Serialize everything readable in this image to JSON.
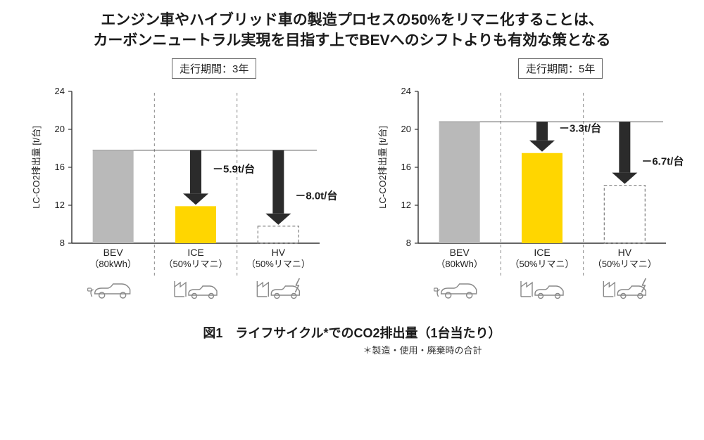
{
  "title_line1": "エンジン車やハイブリッド車の製造プロセスの50%をリマニ化することは、",
  "title_line2": "カーボンニュートラル実現を目指す上でBEVへのシフトよりも有効な策となる",
  "caption": "図1　ライフサイクル*でのCO2排出量（1台当たり）",
  "footnote": "＊製造・使用・廃棄時の合計",
  "y_axis_label": "LC-CO2排出量 [t/台]",
  "chart": {
    "type": "bar",
    "ylim": [
      8,
      24
    ],
    "yticks": [
      8,
      12,
      16,
      20,
      24
    ],
    "tick_fontsize": 13,
    "label_fontsize": 13,
    "axis_color": "#333333",
    "reference_line_color": "#555555",
    "dashed_color": "#888888",
    "arrow_color": "#2b2b2b",
    "bar_colors": {
      "BEV": "#b9b9b9",
      "ICE": "#ffd600",
      "HV_border": "#888888"
    },
    "categories": [
      {
        "key": "BEV",
        "label1": "BEV",
        "label2": "（80kWh）",
        "icon": "ev-car"
      },
      {
        "key": "ICE",
        "label1": "ICE",
        "label2": "（50%リマニ）",
        "icon": "factory-car"
      },
      {
        "key": "HV",
        "label1": "HV",
        "label2": "（50%リマニ）",
        "icon": "factory-car-bolt"
      }
    ]
  },
  "panels": [
    {
      "period_label": "走行期間：3年",
      "baseline": 17.8,
      "bars": {
        "BEV": 17.8,
        "ICE": 11.9,
        "HV": 9.8
      },
      "annotations": {
        "ICE": "－5.9t/台",
        "HV": "－8.0t/台"
      }
    },
    {
      "period_label": "走行期間：5年",
      "baseline": 20.8,
      "bars": {
        "BEV": 20.8,
        "ICE": 17.5,
        "HV": 14.1
      },
      "annotations": {
        "ICE": "－3.3t/台",
        "HV": "－6.7t/台"
      }
    }
  ]
}
